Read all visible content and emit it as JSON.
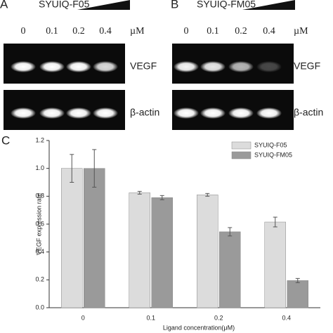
{
  "panels": [
    {
      "label": "A",
      "compound": "SYUIQ-F05",
      "concentrations": [
        "0",
        "0.1",
        "0.2",
        "0.4"
      ],
      "unit": "µM",
      "rows": [
        "VEGF",
        "β-actin"
      ]
    },
    {
      "label": "B",
      "compound": "SYUIQ-FM05",
      "concentrations": [
        "0",
        "0.1",
        "0.2",
        "0.4"
      ],
      "unit": "µM",
      "rows": [
        "VEGF",
        "β-actin"
      ]
    }
  ],
  "chart_data": {
    "type": "bar",
    "panel_label": "C",
    "x_label": "Ligand concentration(μM)",
    "y_label": "VEGF expression rate",
    "categories": [
      "0",
      "0.1",
      "0.2",
      "0.4"
    ],
    "series": [
      {
        "name": "SYUIQ-F05",
        "color": "#dcdcdc",
        "values": [
          1.0,
          0.825,
          0.81,
          0.615
        ],
        "errors": [
          0.1,
          0.01,
          0.01,
          0.035
        ]
      },
      {
        "name": "SYUIQ-FM05",
        "color": "#9a9a9a",
        "values": [
          1.0,
          0.79,
          0.545,
          0.195
        ],
        "errors": [
          0.135,
          0.015,
          0.03,
          0.015
        ]
      }
    ],
    "ylim": [
      0,
      1.2
    ],
    "yticks": [
      {
        "value": 0,
        "label": "0.0"
      },
      0.2,
      0.4,
      0.6,
      0.8,
      {
        "value": 1,
        "label": "1.0"
      },
      1.2
    ]
  }
}
